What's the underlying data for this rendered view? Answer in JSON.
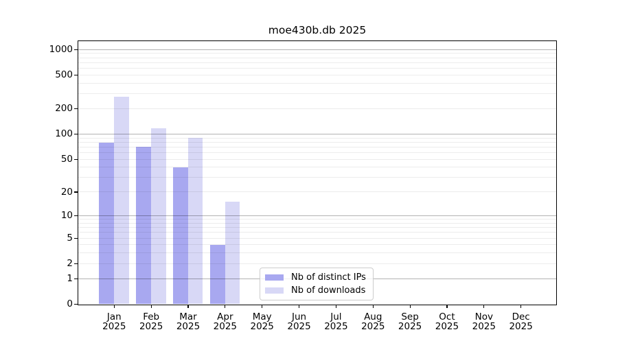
{
  "chart_data": {
    "type": "bar",
    "title": "moe430b.db 2025",
    "x_year": "2025",
    "categories": [
      "Jan",
      "Feb",
      "Mar",
      "Apr",
      "May",
      "Jun",
      "Jul",
      "Aug",
      "Sep",
      "Oct",
      "Nov",
      "Dec"
    ],
    "series": [
      {
        "name": "Nb of distinct IPs",
        "color": "#a8a8f0",
        "values": [
          79,
          70,
          40,
          4,
          0,
          0,
          0,
          0,
          0,
          0,
          0,
          0
        ]
      },
      {
        "name": "Nb of downloads",
        "color": "#d8d8f6",
        "values": [
          277,
          117,
          91,
          15,
          0,
          0,
          0,
          0,
          0,
          0,
          0,
          0
        ]
      }
    ],
    "y_scale": "log10(value+1)",
    "ylim": [
      0,
      1263
    ],
    "y_ticks": [
      1000,
      500,
      200,
      100,
      50,
      20,
      10,
      5,
      2,
      1,
      0
    ],
    "y_major_grid": [
      1,
      10,
      100,
      1000
    ],
    "y_minor_grid": [
      2,
      3,
      4,
      5,
      6,
      7,
      8,
      9,
      20,
      30,
      40,
      50,
      60,
      70,
      80,
      90,
      200,
      300,
      400,
      500,
      600,
      700,
      800,
      900
    ],
    "grid": true,
    "legend_position": "lower center, inside plot"
  },
  "colors": {
    "background": "#ffffff",
    "axis": "#000000",
    "major_grid": "#b3b3b3",
    "minor_grid": "#e8e8e8",
    "legend_border": "#cccccc"
  }
}
